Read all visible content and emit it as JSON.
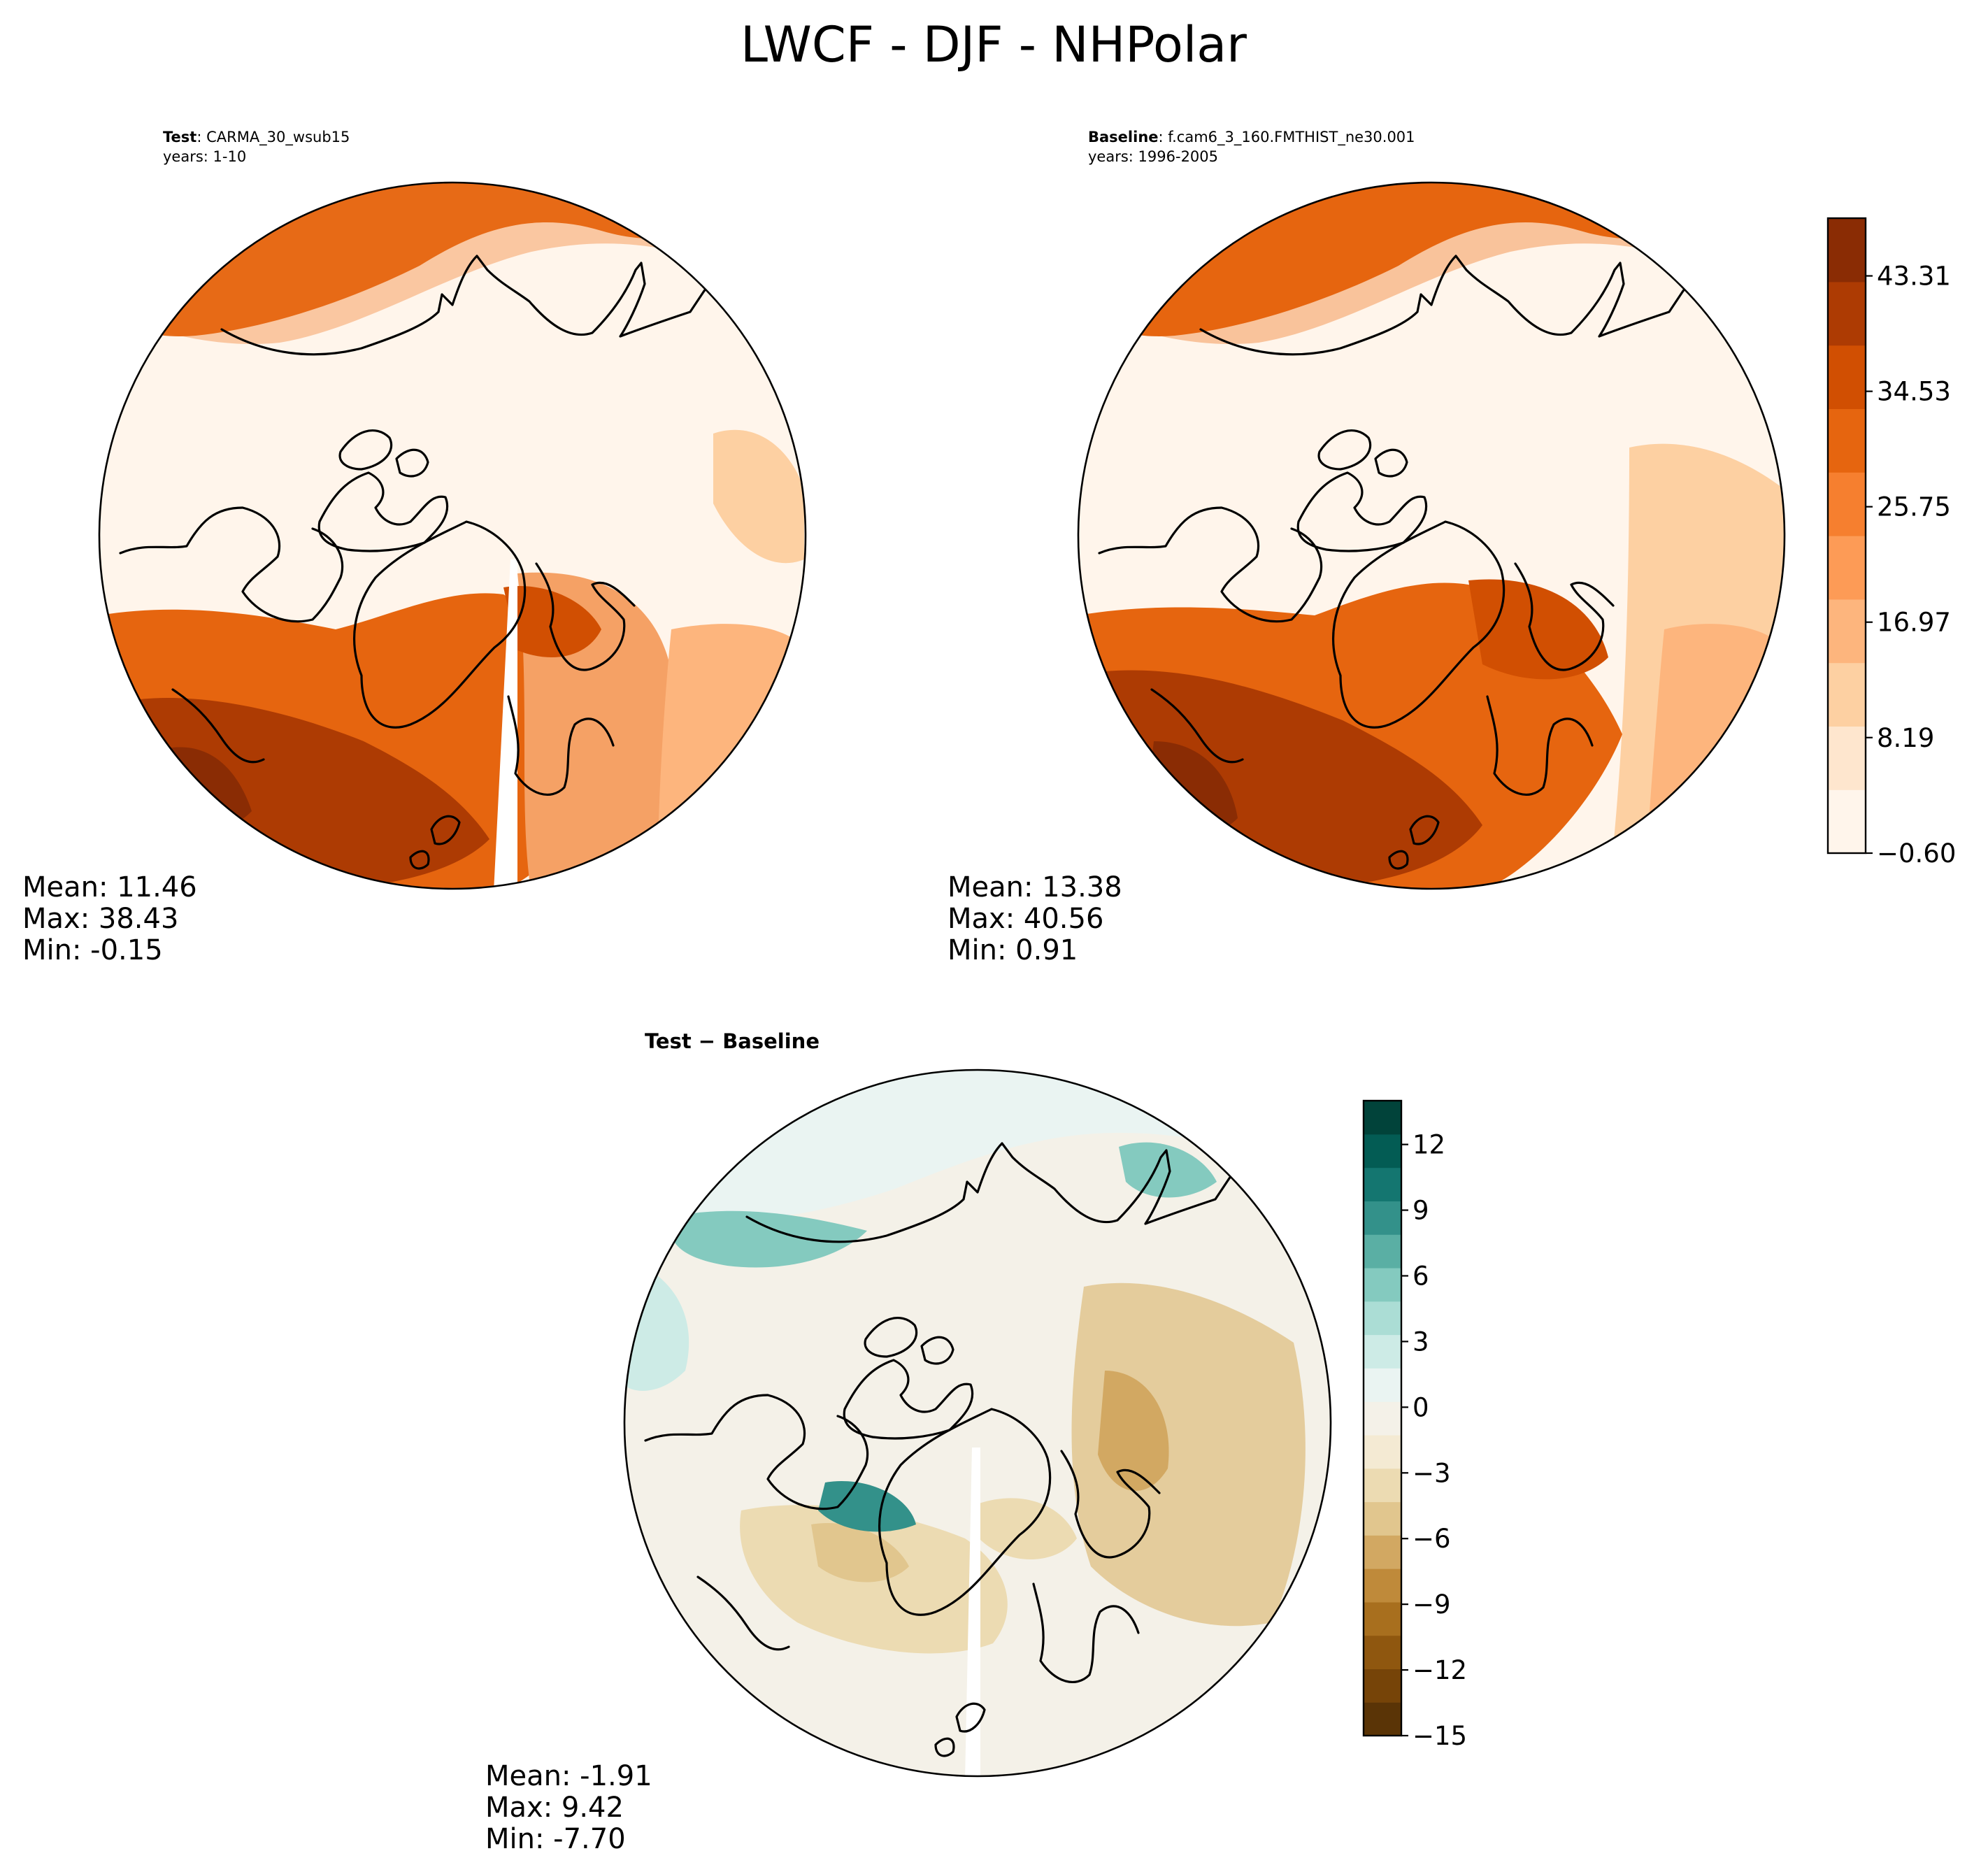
{
  "chart_data": {
    "type": "heatmap",
    "title": "LWCF - DJF - NHPolar",
    "panels": [
      {
        "id": "test",
        "header_bold": "Test",
        "header_name": ": CARMA_30_wsub15",
        "years": "years: 1-10",
        "stats": {
          "mean": "Mean: 11.46",
          "max": "Max: 38.43",
          "min": "Min: -0.15"
        }
      },
      {
        "id": "baseline",
        "header_bold": "Baseline",
        "header_name": ": f.cam6_3_160.FMTHIST_ne30.001",
        "years": "years: 1996-2005",
        "stats": {
          "mean": "Mean: 13.38",
          "max": "Max: 40.56",
          "min": "Min:  0.91"
        }
      },
      {
        "id": "difference",
        "header": "Test − Baseline",
        "stats": {
          "mean": "Mean: -1.91",
          "max": "Max:  9.42",
          "min": "Min: -7.70"
        }
      }
    ],
    "colorbars": [
      {
        "for": "test-baseline",
        "range": [
          -0.6,
          47.7
        ],
        "ticks": [
          "43.31",
          "34.53",
          "25.75",
          "16.97",
          "8.19",
          "−0.60"
        ],
        "colors": [
          "#fff5eb",
          "#fee6ce",
          "#fdd0a2",
          "#fdb57d",
          "#fd9b56",
          "#f67f2f",
          "#e6650f",
          "#d14f02",
          "#ad3b03",
          "#8a2c04"
        ]
      },
      {
        "for": "difference",
        "range": [
          -15,
          14
        ],
        "ticks": [
          "12",
          "9",
          "6",
          "3",
          "0",
          "−3",
          "−6",
          "−9",
          "−12",
          "−15"
        ],
        "colors": [
          "#5a3406",
          "#764408",
          "#8f570f",
          "#a86f1e",
          "#bf8a3a",
          "#d2a862",
          "#e1c68e",
          "#ecdbb2",
          "#f4ead3",
          "#f4f1e8",
          "#eaf4f2",
          "#cdebe6",
          "#abddd5",
          "#84cabf",
          "#5aafa4",
          "#33918a",
          "#147670",
          "#035c54",
          "#01433a"
        ]
      }
    ]
  }
}
